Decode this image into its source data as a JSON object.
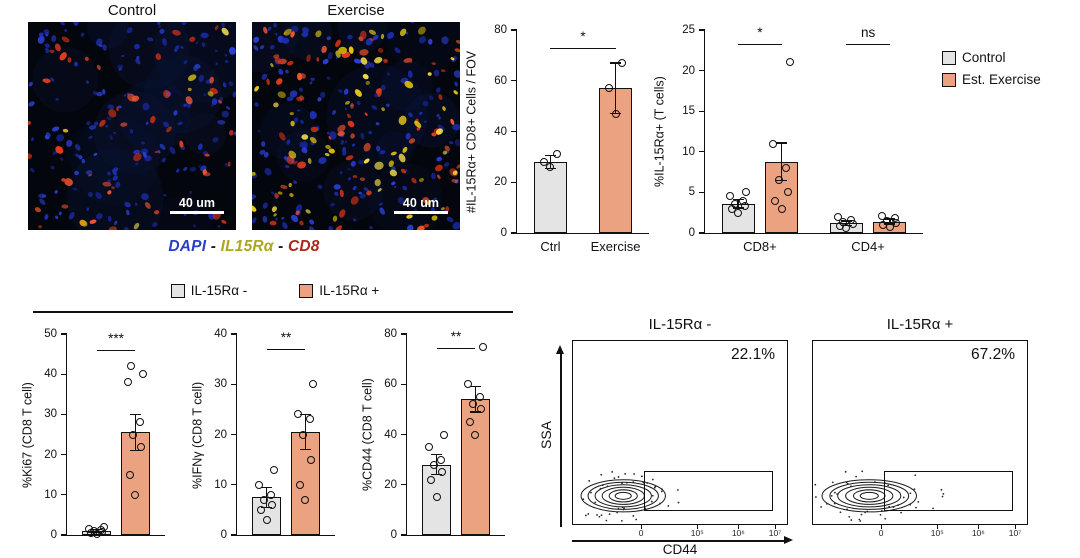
{
  "figure": {
    "microscopy": {
      "panels": [
        {
          "title": "Control",
          "scalebar": "40 um"
        },
        {
          "title": "Exercise",
          "scalebar": "40 um"
        }
      ],
      "caption_parts": [
        {
          "text": "DAPI",
          "color": "#2b3fc0"
        },
        {
          "text": " - ",
          "color": "#1a1a1a"
        },
        {
          "text": "IL15Rα",
          "color": "#aaa81e"
        },
        {
          "text": " - ",
          "color": "#1a1a1a"
        },
        {
          "text": "CD8",
          "color": "#a8281c"
        }
      ]
    },
    "legend_top": {
      "items": [
        {
          "label": "Control",
          "color": "#e4e4e4"
        },
        {
          "label": "Est. Exercise",
          "color": "#eaa281"
        }
      ]
    },
    "legend_bottom": {
      "items": [
        {
          "label": "IL-15Rα -",
          "color": "#e4e4e4"
        },
        {
          "label": "IL-15Rα +",
          "color": "#eaa281"
        }
      ]
    }
  },
  "chart_data": [
    {
      "id": "chart-fov",
      "type": "bar",
      "ylabel": "#IL-15Rα+ CD8+ Cells / FOV",
      "ylim": [
        0,
        80
      ],
      "yticks": [
        0,
        20,
        40,
        60,
        80
      ],
      "groups": [
        {
          "label": "",
          "bars": [
            {
              "label": "Ctrl",
              "color": "#e4e4e4",
              "mean": 28,
              "sem": 2.5,
              "points": [
                26,
                28,
                31
              ]
            }
          ]
        },
        {
          "label": "",
          "bars": [
            {
              "label": "Exercise",
              "color": "#eaa281",
              "mean": 57,
              "sem": 10,
              "points": [
                47,
                57,
                67
              ]
            }
          ]
        }
      ],
      "sig": [
        {
          "b1": 0,
          "b2": 1,
          "label": "*",
          "y": 73
        }
      ]
    },
    {
      "id": "chart-tcells",
      "type": "bar",
      "ylabel": "%IL-15Rα+ (T cells)",
      "ylim": [
        0,
        25
      ],
      "yticks": [
        0,
        5,
        10,
        15,
        20,
        25
      ],
      "groups": [
        {
          "label": "CD8+",
          "bars": [
            {
              "label": "",
              "color": "#e4e4e4",
              "mean": 3.6,
              "sem": 0.5,
              "points": [
                2.5,
                3,
                3.3,
                3.6,
                4,
                4.5,
                5
              ]
            },
            {
              "label": "",
              "color": "#eaa281",
              "mean": 8.8,
              "sem": 2.3,
              "points": [
                3,
                4,
                5,
                6.5,
                8,
                11,
                21
              ]
            }
          ]
        },
        {
          "label": "CD4+",
          "bars": [
            {
              "label": "",
              "color": "#e4e4e4",
              "mean": 1.2,
              "sem": 0.3,
              "points": [
                0.6,
                0.9,
                1.1,
                1.3,
                1.6,
                2
              ]
            },
            {
              "label": "",
              "color": "#eaa281",
              "mean": 1.4,
              "sem": 0.3,
              "points": [
                0.7,
                1,
                1.2,
                1.5,
                1.8,
                2.1
              ]
            }
          ]
        }
      ],
      "sig": [
        {
          "b1": 0,
          "b2": 1,
          "label": "*",
          "y": 23.3
        },
        {
          "b1": 2,
          "b2": 3,
          "label": "ns",
          "y": 23.3
        }
      ]
    },
    {
      "id": "chart-ki67",
      "type": "bar",
      "ylabel": "%Ki67 (CD8 T cell)",
      "ylim": [
        0,
        50
      ],
      "yticks": [
        0,
        10,
        20,
        30,
        40,
        50
      ],
      "groups": [
        {
          "label": "",
          "bars": [
            {
              "label": "",
              "color": "#e4e4e4",
              "mean": 1,
              "sem": 0.4,
              "points": [
                0.3,
                0.5,
                0.8,
                1,
                1.2,
                1.5,
                2
              ]
            },
            {
              "label": "",
              "color": "#eaa281",
              "mean": 25.5,
              "sem": 4.5,
              "points": [
                10,
                15,
                22,
                25,
                28,
                38,
                40,
                42
              ]
            }
          ]
        }
      ],
      "sig": [
        {
          "b1": 0,
          "b2": 1,
          "label": "***",
          "y": 46
        }
      ]
    },
    {
      "id": "chart-ifng",
      "type": "bar",
      "ylabel": "%IFNγ (CD8 T cell)",
      "ylim": [
        0,
        40
      ],
      "yticks": [
        0,
        10,
        20,
        30,
        40
      ],
      "groups": [
        {
          "label": "",
          "bars": [
            {
              "label": "",
              "color": "#e4e4e4",
              "mean": 7.5,
              "sem": 2,
              "points": [
                3,
                5,
                6,
                7,
                8,
                10,
                13
              ]
            },
            {
              "label": "",
              "color": "#eaa281",
              "mean": 20.5,
              "sem": 3.5,
              "points": [
                7,
                10,
                15,
                20,
                23,
                24,
                30
              ]
            }
          ]
        }
      ],
      "sig": [
        {
          "b1": 0,
          "b2": 1,
          "label": "**",
          "y": 37
        }
      ]
    },
    {
      "id": "chart-cd44",
      "type": "bar",
      "ylabel": "%CD44 (CD8 T cell)",
      "ylim": [
        0,
        80
      ],
      "yticks": [
        0,
        20,
        40,
        60,
        80
      ],
      "groups": [
        {
          "label": "",
          "bars": [
            {
              "label": "",
              "color": "#e4e4e4",
              "mean": 28,
              "sem": 4,
              "points": [
                15,
                22,
                25,
                28,
                30,
                35,
                40
              ]
            },
            {
              "label": "",
              "color": "#eaa281",
              "mean": 54,
              "sem": 5,
              "points": [
                40,
                45,
                50,
                52,
                55,
                60,
                75
              ]
            }
          ]
        }
      ],
      "sig": [
        {
          "b1": 0,
          "b2": 1,
          "label": "**",
          "y": 74.5
        }
      ]
    },
    {
      "id": "flow-panels",
      "type": "contour",
      "xlabel": "CD44",
      "ylabel": "SSA",
      "panels": [
        {
          "title": "IL-15Rα -",
          "gate_percent": "22.1%",
          "xticks": [
            "0",
            "10⁵",
            "10⁶",
            "10⁷"
          ]
        },
        {
          "title": "IL-15Rα +",
          "gate_percent": "67.2%",
          "xticks": [
            "0",
            "10⁵",
            "10⁶",
            "10⁷"
          ]
        }
      ]
    }
  ]
}
